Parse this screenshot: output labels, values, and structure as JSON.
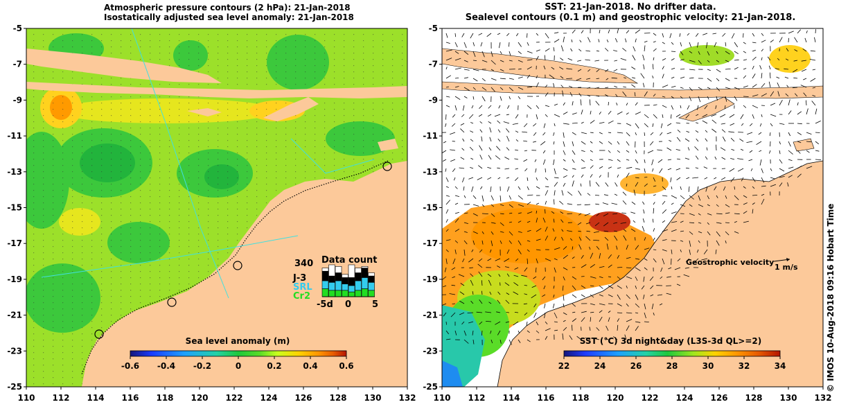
{
  "left_panel": {
    "title_line1": "Atmospheric pressure contours (2 hPa): 21-Jan-2018",
    "title_line2": "Isostatically adjusted sea level anomaly: 21-Jan-2018",
    "y_ticks": [
      "-5",
      "-7",
      "-9",
      "-11",
      "-13",
      "-15",
      "-17",
      "-19",
      "-21",
      "-23",
      "-25"
    ],
    "x_ticks": [
      "110",
      "112",
      "114",
      "116",
      "118",
      "120",
      "122",
      "124",
      "126",
      "128",
      "130",
      "132"
    ],
    "colorbar": {
      "label": "Sea level anomaly (m)",
      "ticks": [
        "-0.6",
        "-0.4",
        "-0.2",
        "0",
        "0.2",
        "0.4",
        "0.6"
      ]
    },
    "data_count": {
      "title": "Data count",
      "max_label": "340",
      "legend": [
        {
          "name": "J-3",
          "color": "#000000"
        },
        {
          "name": "SRL",
          "color": "#33ccee"
        },
        {
          "name": "Cr2",
          "color": "#22dd22"
        }
      ],
      "x_ticks": [
        "-5d",
        "0",
        "5"
      ],
      "bars": [
        {
          "white": 0.1,
          "black": 0.3,
          "cyan": 0.25,
          "green": 0.25
        },
        {
          "white": 0.35,
          "black": 0.2,
          "cyan": 0.25,
          "green": 0.2
        },
        {
          "white": 0.2,
          "black": 0.25,
          "cyan": 0.3,
          "green": 0.2
        },
        {
          "white": 0.1,
          "black": 0.2,
          "cyan": 0.2,
          "green": 0.2
        },
        {
          "white": 0.4,
          "black": 0.25,
          "cyan": 0.2,
          "green": 0.15
        },
        {
          "white": 0.15,
          "black": 0.25,
          "cyan": 0.3,
          "green": 0.2
        },
        {
          "white": 0.05,
          "black": 0.3,
          "cyan": 0.35,
          "green": 0.25
        },
        {
          "white": 0.1,
          "black": 0.2,
          "cyan": 0.25,
          "green": 0.2
        }
      ]
    }
  },
  "right_panel": {
    "title_line1": "SST: 21-Jan-2018. No drifter data.",
    "title_line2": "Sealevel contours (0.1 m) and geostrophic velocity: 21-Jan-2018.",
    "y_ticks": [
      "-5",
      "-7",
      "-9",
      "-11",
      "-13",
      "-15",
      "-17",
      "-19",
      "-21",
      "-23",
      "-25"
    ],
    "x_ticks": [
      "110",
      "112",
      "114",
      "116",
      "118",
      "120",
      "122",
      "124",
      "126",
      "128",
      "130",
      "132"
    ],
    "colorbar": {
      "label": "SST (°C) 3d night&day (L3S-3d QL>=2)",
      "ticks": [
        "22",
        "24",
        "26",
        "28",
        "30",
        "32",
        "34"
      ]
    },
    "velocity_label": "Geostrophic velocity",
    "velocity_scale": "1 m/s",
    "credit": "© IMOS 10-Aug-2018 09:16 Hobart Time"
  },
  "colors": {
    "land": "#fcc99a",
    "sla_scale": [
      "#16167a",
      "#1a3cff",
      "#1ea0ff",
      "#23d2a5",
      "#1ec83c",
      "#5adc28",
      "#c8ff1e",
      "#ffd200",
      "#ff9600",
      "#e65a00",
      "#b41400"
    ],
    "sst_scale": [
      "#14147a",
      "#1e3cff",
      "#1ea0ff",
      "#23d2a5",
      "#1ec83c",
      "#a0e61e",
      "#ffd200",
      "#ff9600",
      "#e65a00",
      "#b41400"
    ]
  }
}
